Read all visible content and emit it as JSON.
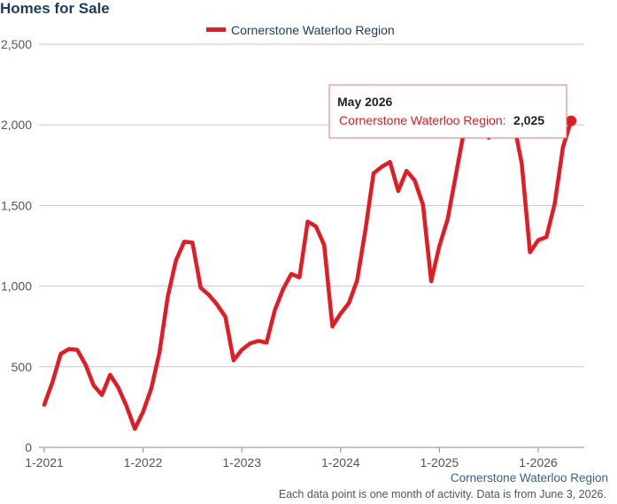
{
  "header": {
    "title": "Homes for Sale"
  },
  "legend": {
    "label": "Cornerstone Waterloo Region"
  },
  "tooltip": {
    "title": "May 2026",
    "series": "Cornerstone Waterloo Region:",
    "value": "2,025"
  },
  "credit": "Cornerstone Waterloo Region",
  "footnote": "Each data point is one month of activity. Data is from June 3, 2026.",
  "colors": {
    "series": "#e31b23",
    "grid": "#c8c8c8",
    "title": "#1c3b5e"
  },
  "chart_data": {
    "type": "line",
    "title": "Homes for Sale",
    "xlabel": "",
    "ylabel": "",
    "ylim": [
      0,
      2500
    ],
    "grid": true,
    "legend_position": "top",
    "y_ticks": [
      "0",
      "500",
      "1,000",
      "1,500",
      "2,000",
      "2,500"
    ],
    "x_ticks": [
      "1-2021",
      "1-2022",
      "1-2023",
      "1-2024",
      "1-2025",
      "1-2026"
    ],
    "series": [
      {
        "name": "Cornerstone Waterloo Region",
        "x": [
          "2021-01",
          "2021-02",
          "2021-03",
          "2021-04",
          "2021-05",
          "2021-06",
          "2021-07",
          "2021-08",
          "2021-09",
          "2021-10",
          "2021-11",
          "2021-12",
          "2022-01",
          "2022-02",
          "2022-03",
          "2022-04",
          "2022-05",
          "2022-06",
          "2022-07",
          "2022-08",
          "2022-09",
          "2022-10",
          "2022-11",
          "2022-12",
          "2023-01",
          "2023-02",
          "2023-03",
          "2023-04",
          "2023-05",
          "2023-06",
          "2023-07",
          "2023-08",
          "2023-09",
          "2023-10",
          "2023-11",
          "2023-12",
          "2024-01",
          "2024-02",
          "2024-03",
          "2024-04",
          "2024-05",
          "2024-06",
          "2024-07",
          "2024-08",
          "2024-09",
          "2024-10",
          "2024-11",
          "2024-12",
          "2025-01",
          "2025-02",
          "2025-03",
          "2025-04",
          "2025-05",
          "2025-06",
          "2025-07",
          "2025-08",
          "2025-09",
          "2025-10",
          "2025-11",
          "2025-12",
          "2026-01",
          "2026-02",
          "2026-03",
          "2026-04",
          "2026-05"
        ],
        "values": [
          265,
          405,
          580,
          610,
          605,
          515,
          385,
          325,
          450,
          370,
          255,
          115,
          220,
          365,
          590,
          935,
          1160,
          1275,
          1270,
          990,
          945,
          885,
          810,
          540,
          605,
          645,
          660,
          650,
          850,
          980,
          1075,
          1055,
          1400,
          1370,
          1255,
          750,
          830,
          895,
          1035,
          1345,
          1700,
          1740,
          1770,
          1590,
          1715,
          1655,
          1505,
          1030,
          1250,
          1415,
          1690,
          1965,
          2195,
          2120,
          1920,
          2030,
          1990,
          2020,
          1760,
          1210,
          1285,
          1305,
          1510,
          1860,
          2025
        ]
      }
    ]
  }
}
